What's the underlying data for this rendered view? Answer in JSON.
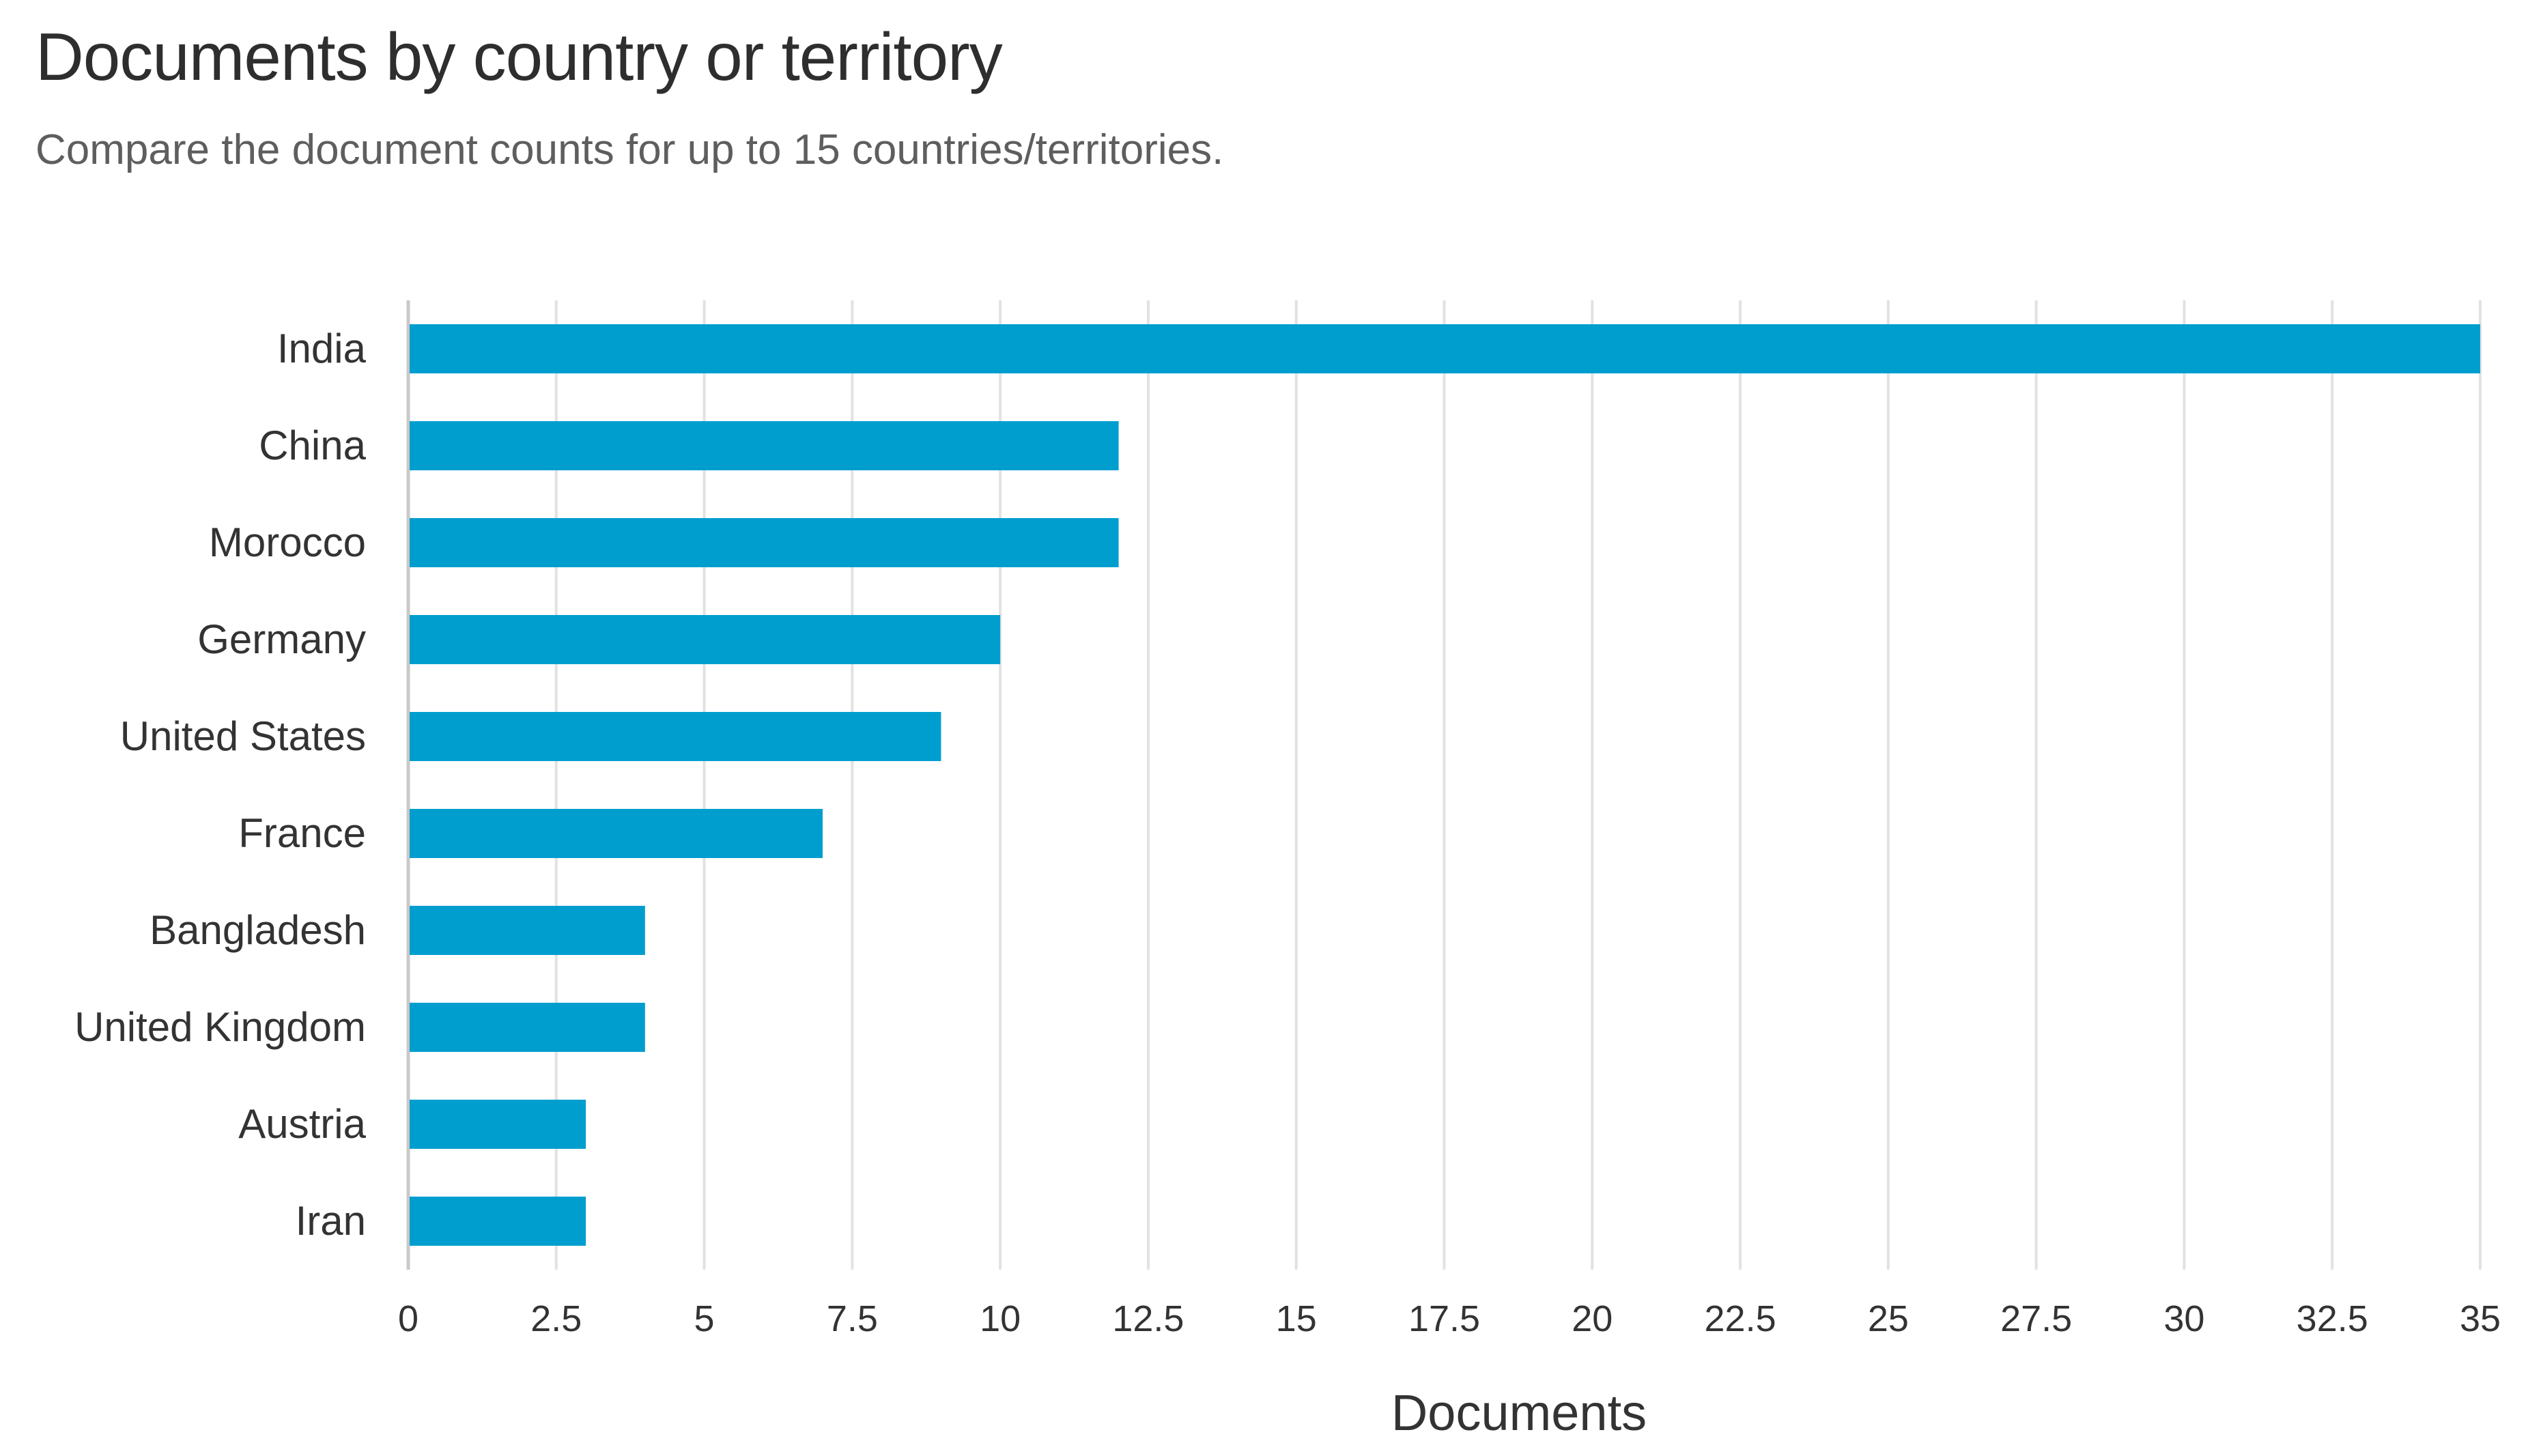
{
  "header": {
    "title": "Documents by country or territory",
    "subtitle": "Compare the document counts for up to 15 countries/territories."
  },
  "colors": {
    "bar": "#009ecf",
    "grid": "#e2e2e2",
    "axis": "#c8c8c8"
  },
  "chart_data": {
    "type": "bar",
    "orientation": "horizontal",
    "title": "Documents by country or territory",
    "subtitle": "Compare the document counts for up to 15 countries/territories.",
    "categories": [
      "India",
      "China",
      "Morocco",
      "Germany",
      "United States",
      "France",
      "Bangladesh",
      "United Kingdom",
      "Austria",
      "Iran"
    ],
    "values": [
      35,
      12,
      12,
      10,
      9,
      7,
      4,
      4,
      3,
      3
    ],
    "xlabel": "Documents",
    "ylabel": "",
    "xlim": [
      0,
      35
    ],
    "xticks": [
      0,
      2.5,
      5,
      7.5,
      10,
      12.5,
      15,
      17.5,
      20,
      22.5,
      25,
      27.5,
      30,
      32.5,
      35
    ],
    "xtick_labels": [
      "0",
      "2.5",
      "5",
      "7.5",
      "10",
      "12.5",
      "15",
      "17.5",
      "20",
      "22.5",
      "25",
      "27.5",
      "30",
      "32.5",
      "35"
    ],
    "grid": true,
    "legend": "none"
  }
}
